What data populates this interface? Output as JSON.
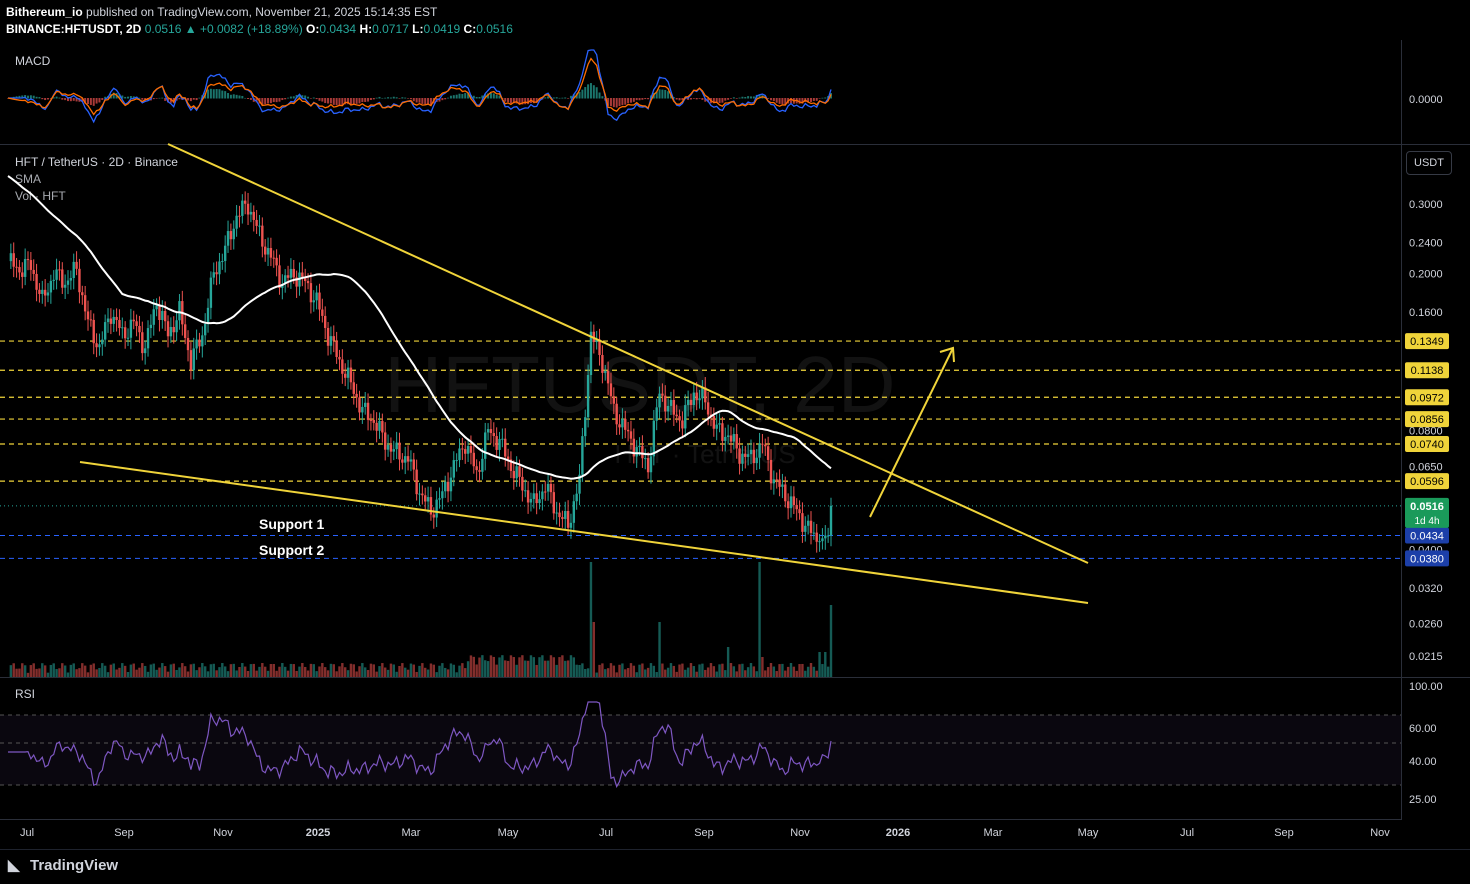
{
  "header": {
    "publisher": "Bithereum_io",
    "published_text": " published on TradingView.com, November 21, 2025 15:14:35 EST",
    "symbol_line": "BINANCE:HFTUSDT, 2D",
    "last": "0.0516",
    "change": "▲ +0.0082 (+18.89%)",
    "o_label": "O:",
    "o": "0.0434",
    "h_label": "H:",
    "h": "0.0717",
    "l_label": "L:",
    "l": "0.0419",
    "c_label": "C:",
    "c": "0.0516"
  },
  "panes": {
    "macd_label": "MACD",
    "macd_tick": "0.0000",
    "main_title": "HFT / TetherUS · 2D · Binance",
    "sma_label": "SMA",
    "vol_label": "Vol · HFT",
    "watermark": "HFTUSDT, 2D",
    "watermark_sub": "HFT · TetherUS",
    "currency_button": "USDT",
    "rsi_label": "RSI"
  },
  "annotations": {
    "support1": "Support 1",
    "support2": "Support 2"
  },
  "footer": {
    "brand": "TradingView"
  },
  "colors": {
    "up": "#26a69a",
    "down": "#ef5350",
    "trend": "#f0d43a",
    "sma": "#ffffff",
    "macd": "#2962ff",
    "signal": "#ff6d00",
    "rsi": "#7e57c2"
  },
  "chart_data": {
    "type": "candlestick",
    "symbol": "HFTUSDT",
    "timeframe": "2D",
    "scale": "log",
    "y_ticks": [
      "0.3000",
      "0.2400",
      "0.2000",
      "0.1600",
      "0.0800",
      "0.0650",
      "0.0400",
      "0.0320",
      "0.0260",
      "0.0215"
    ],
    "x_ticks": [
      "Jul",
      "Sep",
      "Nov",
      "2025",
      "Mar",
      "May",
      "Jul",
      "Sep",
      "Nov",
      "2026",
      "Mar",
      "May",
      "Jul",
      "Sep",
      "Nov"
    ],
    "resistance_levels": [
      {
        "value": "0.1349"
      },
      {
        "value": "0.1138"
      },
      {
        "value": "0.0972"
      },
      {
        "value": "0.0856"
      },
      {
        "value": "0.0740"
      },
      {
        "value": "0.0596"
      }
    ],
    "support_levels": [
      {
        "value": "0.0434"
      },
      {
        "value": "0.0380"
      }
    ],
    "last_price": {
      "value": "0.0516",
      "countdown": "1d 4h"
    },
    "rsi_ticks": [
      "100.00",
      "60.00",
      "40.00",
      "25.00"
    ],
    "ohlc_path": [
      [
        0,
        0.215
      ],
      [
        4,
        0.205
      ],
      [
        8,
        0.21
      ],
      [
        12,
        0.17
      ],
      [
        16,
        0.2
      ],
      [
        20,
        0.19
      ],
      [
        24,
        0.205
      ],
      [
        28,
        0.15
      ],
      [
        32,
        0.13
      ],
      [
        36,
        0.16
      ],
      [
        40,
        0.14
      ],
      [
        44,
        0.15
      ],
      [
        48,
        0.13
      ],
      [
        52,
        0.17
      ],
      [
        56,
        0.14
      ],
      [
        60,
        0.16
      ],
      [
        64,
        0.12
      ],
      [
        68,
        0.14
      ],
      [
        72,
        0.2
      ],
      [
        76,
        0.23
      ],
      [
        80,
        0.28
      ],
      [
        84,
        0.3
      ],
      [
        88,
        0.25
      ],
      [
        92,
        0.22
      ],
      [
        96,
        0.19
      ],
      [
        100,
        0.2
      ],
      [
        104,
        0.19
      ],
      [
        108,
        0.17
      ],
      [
        112,
        0.14
      ],
      [
        116,
        0.12
      ],
      [
        120,
        0.105
      ],
      [
        124,
        0.09
      ],
      [
        128,
        0.085
      ],
      [
        132,
        0.075
      ],
      [
        136,
        0.07
      ],
      [
        140,
        0.068
      ],
      [
        144,
        0.056
      ],
      [
        148,
        0.05
      ],
      [
        152,
        0.055
      ],
      [
        156,
        0.065
      ],
      [
        160,
        0.075
      ],
      [
        164,
        0.062
      ],
      [
        168,
        0.08
      ],
      [
        172,
        0.075
      ],
      [
        176,
        0.065
      ],
      [
        180,
        0.058
      ],
      [
        184,
        0.052
      ],
      [
        188,
        0.058
      ],
      [
        192,
        0.05
      ],
      [
        196,
        0.046
      ],
      [
        200,
        0.06
      ],
      [
        204,
        0.14
      ],
      [
        208,
        0.12
      ],
      [
        212,
        0.09
      ],
      [
        216,
        0.08
      ],
      [
        220,
        0.072
      ],
      [
        224,
        0.065
      ],
      [
        228,
        0.1
      ],
      [
        232,
        0.09
      ],
      [
        236,
        0.085
      ],
      [
        240,
        0.1
      ],
      [
        244,
        0.095
      ],
      [
        248,
        0.08
      ],
      [
        252,
        0.078
      ],
      [
        256,
        0.07
      ],
      [
        260,
        0.068
      ],
      [
        264,
        0.074
      ],
      [
        268,
        0.06
      ],
      [
        272,
        0.055
      ],
      [
        276,
        0.05
      ],
      [
        280,
        0.045
      ],
      [
        284,
        0.042
      ],
      [
        286,
        0.0434
      ],
      [
        288,
        0.0516
      ]
    ]
  }
}
